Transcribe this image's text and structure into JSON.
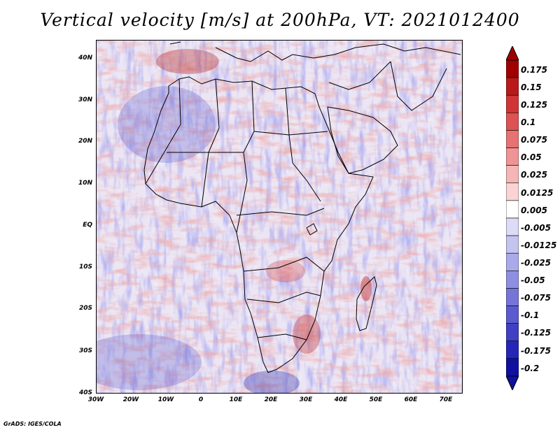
{
  "title": "Vertical velocity [m/s] at 200hPa, VT: 2021012400",
  "map": {
    "region": "Africa",
    "lat_labels": [
      "40N",
      "30N",
      "20N",
      "10N",
      "EQ",
      "10S",
      "20S",
      "30S",
      "40S"
    ],
    "lon_labels": [
      "30W",
      "20W",
      "10W",
      "0",
      "10E",
      "20E",
      "30E",
      "40E",
      "50E",
      "60E",
      "70E"
    ],
    "colors": {
      "ocean_base": "#ece6f4",
      "ascent": "#e37f7f",
      "descent": "#7676e0",
      "coastline": "#000000"
    }
  },
  "colorbar": {
    "labels": [
      "0.175",
      "0.15",
      "0.125",
      "0.1",
      "0.075",
      "0.05",
      "0.025",
      "0.0125",
      "0.005",
      "-0.005",
      "-0.0125",
      "-0.025",
      "-0.05",
      "-0.075",
      "-0.1",
      "-0.125",
      "-0.175",
      "-0.2"
    ],
    "colors": [
      "#a00000",
      "#b81a1a",
      "#cf3535",
      "#dd5252",
      "#e67272",
      "#ef9494",
      "#f5b6b6",
      "#fad4d4",
      "#ffffff",
      "#dcdcf6",
      "#c4c4f0",
      "#aaaaea",
      "#8f8fe2",
      "#7575d8",
      "#5b5bcf",
      "#4040c4",
      "#2626b6",
      "#1010a0"
    ]
  },
  "credit": "GrADS: IGES/COLA"
}
